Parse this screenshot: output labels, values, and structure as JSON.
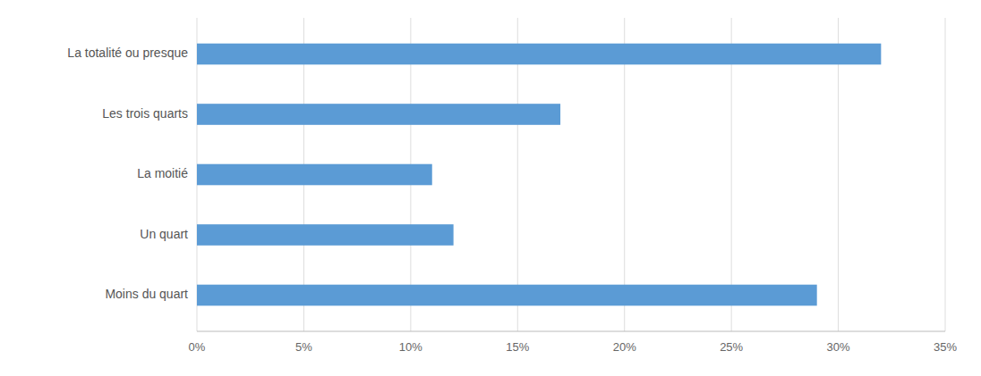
{
  "chart_data": {
    "type": "bar",
    "orientation": "horizontal",
    "categories": [
      "Moins du quart",
      "Un quart",
      "La moitié",
      "Les trois quarts",
      "La totalité ou presque"
    ],
    "values": [
      0.29,
      0.12,
      0.11,
      0.17,
      0.32
    ],
    "color": "#5B9BD5",
    "xlim": [
      0,
      0.35
    ],
    "xticks": [
      {
        "value": 0,
        "label": "0%"
      },
      {
        "value": 0.05,
        "label": "5%"
      },
      {
        "value": 0.1,
        "label": "10%"
      },
      {
        "value": 0.15,
        "label": "15%"
      },
      {
        "value": 0.2,
        "label": "20%"
      },
      {
        "value": 0.25,
        "label": "25%"
      },
      {
        "value": 0.3,
        "label": "30%"
      },
      {
        "value": 0.35,
        "label": "35%"
      }
    ],
    "grid": true
  }
}
